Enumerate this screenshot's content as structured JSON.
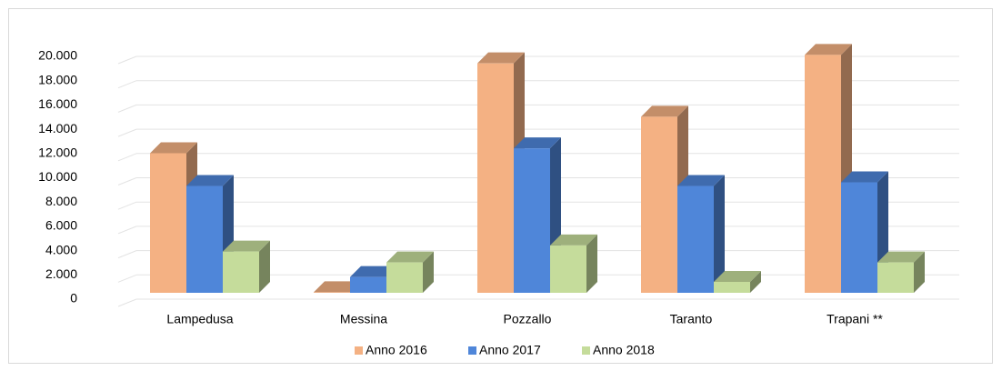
{
  "chart_data": {
    "type": "bar3d",
    "categories": [
      "Lampedusa",
      "Messina",
      "Pozzallo",
      "Taranto",
      "Trapani **"
    ],
    "series": [
      {
        "name": "Anno 2016",
        "color": "#f4b183",
        "values": [
          11500,
          50,
          18900,
          14500,
          19600
        ]
      },
      {
        "name": "Anno 2017",
        "color": "#4f86d9",
        "values": [
          8800,
          1300,
          11900,
          8800,
          9100
        ]
      },
      {
        "name": "Anno 2018",
        "color": "#c5dc9b",
        "values": [
          3400,
          2500,
          3900,
          900,
          2500
        ]
      }
    ],
    "ylim": [
      0,
      20000
    ],
    "yticks": [
      0,
      {
        "value": 2000,
        "label": "2.000"
      },
      {
        "value": 4000,
        "label": "4.000"
      },
      {
        "value": 6000,
        "label": "6.000"
      },
      {
        "value": 8000,
        "label": "8.000"
      },
      {
        "value": 10000,
        "label": "10.000"
      },
      {
        "value": 12000,
        "label": "12.000"
      },
      {
        "value": 14000,
        "label": "14.000"
      },
      {
        "value": 16000,
        "label": "16.000"
      },
      {
        "value": 18000,
        "label": "18.000"
      },
      {
        "value": 20000,
        "label": "20.000"
      }
    ],
    "grid": true,
    "legend": "bottom"
  }
}
